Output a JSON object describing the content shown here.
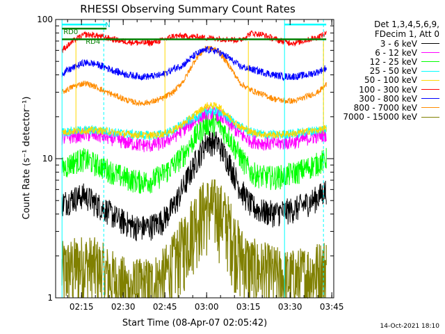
{
  "chart_data": {
    "type": "line",
    "title": "RHESSI Observing Summary Count Rates",
    "xlabel": "Start Time (08-Apr-07 02:05:42)",
    "ylabel": "Count Rate (s⁻¹ detector⁻¹)",
    "yscale": "log",
    "xlim": [
      "02:05:42",
      "03:45:42"
    ],
    "ylim": [
      1,
      100
    ],
    "x_ticks": [
      "02:15",
      "02:30",
      "02:45",
      "03:00",
      "03:15",
      "03:30",
      "03:45"
    ],
    "y_ticks": [
      "1",
      "10",
      "100"
    ],
    "legend_header": [
      "Det 1,3,4,5,6,9,",
      "FDecim 1, Att 0"
    ],
    "legend_position": "top-right, outside plot",
    "x": [
      "02:08",
      "02:12",
      "02:16",
      "02:20",
      "02:24",
      "02:28",
      "02:32",
      "02:36",
      "02:40",
      "02:44",
      "02:48",
      "02:52",
      "02:56",
      "03:00",
      "03:04",
      "03:08",
      "03:12",
      "03:16",
      "03:20",
      "03:24",
      "03:28",
      "03:32",
      "03:36",
      "03:40",
      "03:43"
    ],
    "series": [
      {
        "name": "3 - 6 keV",
        "color": "#000000",
        "values": [
          4.8,
          5.2,
          5.5,
          4.8,
          4.3,
          3.7,
          3.4,
          3.2,
          3.3,
          3.6,
          4.5,
          6.5,
          9.5,
          13.5,
          13,
          9.5,
          6.2,
          4.6,
          4.2,
          4.1,
          4.2,
          4.4,
          4.8,
          5.3,
          6
        ]
      },
      {
        "name": "6 - 12 keV",
        "color": "#ff00ff",
        "values": [
          14,
          14.5,
          15,
          14.8,
          14.3,
          13.6,
          13,
          12.6,
          12.5,
          13,
          14.4,
          16.5,
          19,
          21.5,
          21,
          18,
          15,
          13.5,
          13,
          12.8,
          13,
          13.3,
          14,
          14.6,
          15
        ]
      },
      {
        "name": "12 - 25 keV",
        "color": "#00ff00",
        "values": [
          8.5,
          9.5,
          10,
          9.2,
          8.5,
          7.7,
          7.2,
          6.9,
          7,
          7.7,
          9,
          11,
          14.5,
          18,
          18,
          14.5,
          10.5,
          8,
          7.5,
          7.4,
          7.6,
          8,
          8.6,
          9.3,
          10
        ]
      },
      {
        "name": "25 - 50 keV",
        "color": "#00ffff",
        "values": [
          15.5,
          15.8,
          16,
          16,
          15.8,
          15.3,
          15,
          14.8,
          14.7,
          15,
          16,
          18,
          20,
          22,
          22,
          19.5,
          17,
          15.5,
          15,
          14.8,
          15,
          15.2,
          15.7,
          16,
          16.5
        ]
      },
      {
        "name": "50 - 100 keV",
        "color": "#ffd700",
        "values": [
          15.5,
          15.8,
          16,
          16,
          15.8,
          15.3,
          15,
          14.8,
          14.7,
          15,
          16,
          18,
          21,
          24,
          24,
          20,
          17,
          15.5,
          15,
          14.8,
          15,
          15.2,
          15.7,
          16,
          16.5
        ]
      },
      {
        "name": "100 - 300 keV",
        "color": "#ff0000",
        "values": [
          60,
          70,
          78,
          77,
          74,
          71,
          69,
          68,
          68,
          71,
          76,
          76,
          75,
          74,
          73,
          72,
          71,
          80,
          78,
          73,
          69,
          68,
          71,
          75,
          79
        ]
      },
      {
        "name": "300 - 800 keV",
        "color": "#0000ff",
        "values": [
          41,
          45,
          49,
          48,
          45,
          42,
          40,
          39,
          39,
          40,
          44,
          48,
          56,
          61,
          59,
          53,
          46,
          44,
          42,
          40,
          39,
          39,
          40,
          42,
          45
        ]
      },
      {
        "name": "800 - 7000 keV",
        "color": "#ff8c00",
        "values": [
          30,
          33,
          35,
          33,
          30,
          28,
          26,
          25,
          25.5,
          27,
          30,
          37,
          52,
          63,
          60,
          47,
          35,
          31,
          29,
          27,
          26,
          26,
          28,
          30,
          34
        ]
      },
      {
        "name": "7000 - 15000 keV",
        "color": "#808000",
        "values": [
          1.6,
          1.7,
          1.8,
          1.7,
          1.5,
          1.3,
          1.2,
          1.2,
          1.25,
          1.4,
          1.8,
          2.6,
          3.8,
          4.6,
          4.5,
          3.4,
          2.1,
          1.7,
          1.6,
          1.5,
          1.4,
          1.4,
          1.5,
          1.6,
          1.7
        ]
      }
    ],
    "annotations": [
      {
        "label": "RD0",
        "x": "02:08",
        "y": 82
      },
      {
        "label": "N",
        "x": "02:23",
        "y": 92
      },
      {
        "label": "RD4",
        "x": "02:16",
        "y": 70
      }
    ],
    "date_stamp": "14-Oct-2021 18:10"
  }
}
